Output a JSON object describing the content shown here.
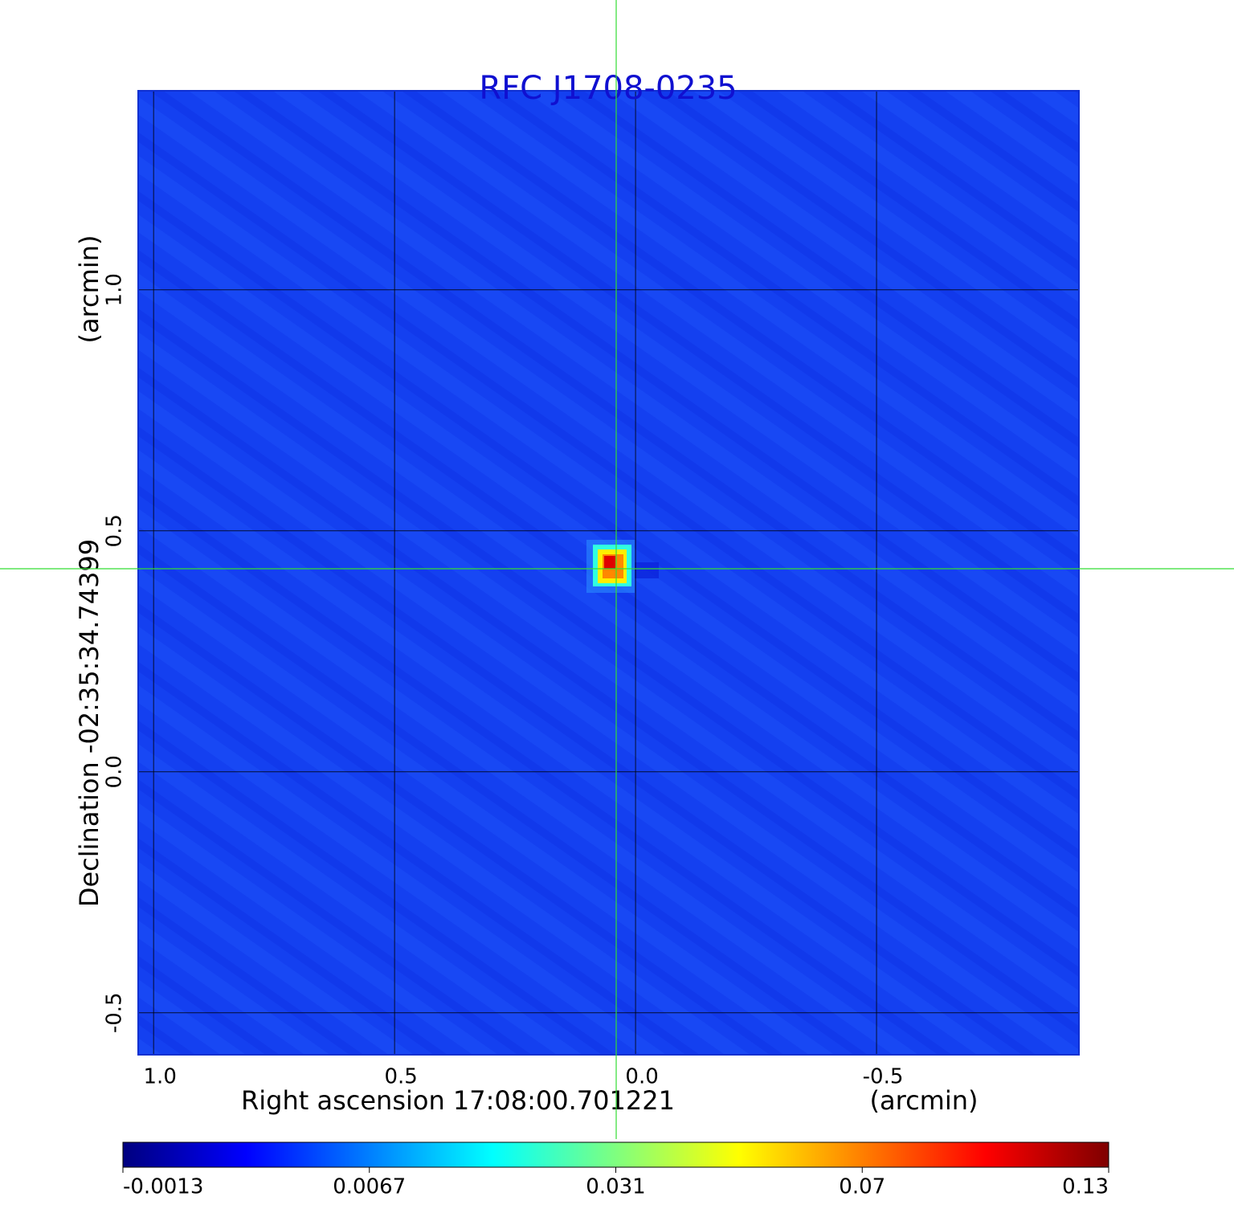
{
  "chart_data": {
    "type": "image",
    "title": "RFC J1708-0235",
    "title_color": "#1010d0",
    "x_label": "Right ascension  17:08:00.701221",
    "x_unit": "(arcmin)",
    "y_label": "Declination  -02:35:34.74399",
    "y_unit": "(arcmin)",
    "xlim": [
      1.032,
      -0.92
    ],
    "ylim": [
      -0.587,
      1.413
    ],
    "xticks": [
      {
        "value": 1.0,
        "label": "1.0"
      },
      0.5,
      {
        "value": 0.0,
        "label": "0.0"
      },
      -0.5
    ],
    "yticks": [
      -0.5,
      {
        "value": 0.0,
        "label": "0.0"
      },
      0.5,
      {
        "value": 1.0,
        "label": "1.0"
      }
    ],
    "grid": true,
    "colorbar_ticks": [
      -0.0013,
      0.0067,
      0.031,
      0.07,
      0.13
    ],
    "colormap": [
      "#00007f",
      "#0000ff",
      "#007fff",
      "#00ffff",
      "#7fff7f",
      "#ffff00",
      "#ff7f00",
      "#ff0000",
      "#7f0000"
    ]
  }
}
